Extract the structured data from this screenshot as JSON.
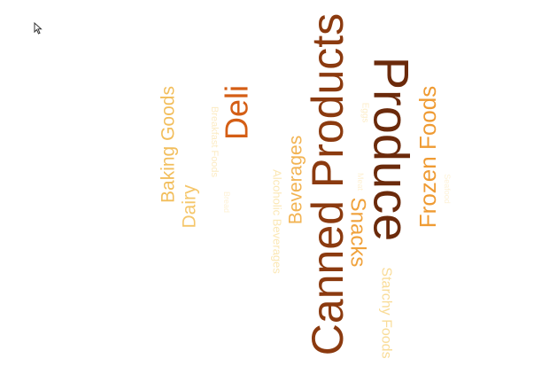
{
  "chart_data": {
    "type": "wordcloud",
    "orientation": "vertical-rotated",
    "words": [
      {
        "text": "Canned Products",
        "weight": 100,
        "color": "#8b3a0f"
      },
      {
        "text": "Produce",
        "weight": 95,
        "color": "#6b2a0b"
      },
      {
        "text": "Deli",
        "weight": 55,
        "color": "#d45e15"
      },
      {
        "text": "Frozen Foods",
        "weight": 45,
        "color": "#ef9b33"
      },
      {
        "text": "Snacks",
        "weight": 40,
        "color": "#f0a23c"
      },
      {
        "text": "Beverages",
        "weight": 35,
        "color": "#f2b352"
      },
      {
        "text": "Baking Goods",
        "weight": 35,
        "color": "#f2be5c"
      },
      {
        "text": "Dairy",
        "weight": 32,
        "color": "#f5c66a"
      },
      {
        "text": "Starchy Foods",
        "weight": 24,
        "color": "#f9dc98"
      },
      {
        "text": "Alcoholic Beverages",
        "weight": 18,
        "color": "#fbe7b4"
      },
      {
        "text": "Breakfast Foods",
        "weight": 14,
        "color": "#fcebc3"
      },
      {
        "text": "Eggs",
        "weight": 12,
        "color": "#fcedc8"
      },
      {
        "text": "Meat",
        "weight": 11,
        "color": "#fdf0d2"
      },
      {
        "text": "Seafood",
        "weight": 10,
        "color": "#fdf2d8"
      },
      {
        "text": "Bread",
        "weight": 10,
        "color": "#fdf1d5"
      }
    ]
  }
}
